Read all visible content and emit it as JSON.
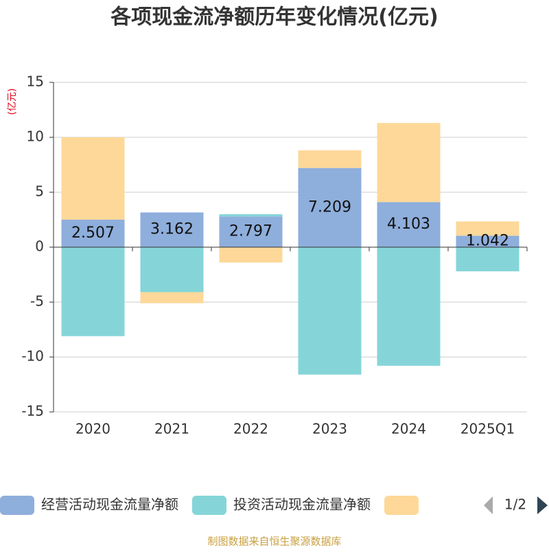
{
  "chart_data": {
    "type": "bar",
    "stacked": true,
    "title": "各项现金流净额历年变化情况(亿元)",
    "y_label": "(亿元)",
    "categories": [
      "2020",
      "2021",
      "2022",
      "2023",
      "2024",
      "2025Q1"
    ],
    "series": [
      {
        "name": "经营活动现金流量净额",
        "color": "#8eaedc",
        "values": [
          2.507,
          3.162,
          2.797,
          7.209,
          4.103,
          1.042
        ],
        "show_labels": true
      },
      {
        "name": "投资活动现金流量净额",
        "color": "#85d5d8",
        "values": [
          -8.1,
          -4.1,
          0.2,
          -11.6,
          -10.8,
          -2.2
        ]
      },
      {
        "name": null,
        "color": "#fdd898",
        "values": [
          7.5,
          -1.0,
          -1.4,
          1.6,
          7.2,
          1.3
        ]
      }
    ],
    "ylim": [
      -15,
      15
    ],
    "yticks": [
      -15,
      -10,
      -5,
      0,
      5,
      10,
      15
    ],
    "grid": true,
    "legend_page": "1/2",
    "source": "制图数据来自恒生聚源数据库"
  }
}
